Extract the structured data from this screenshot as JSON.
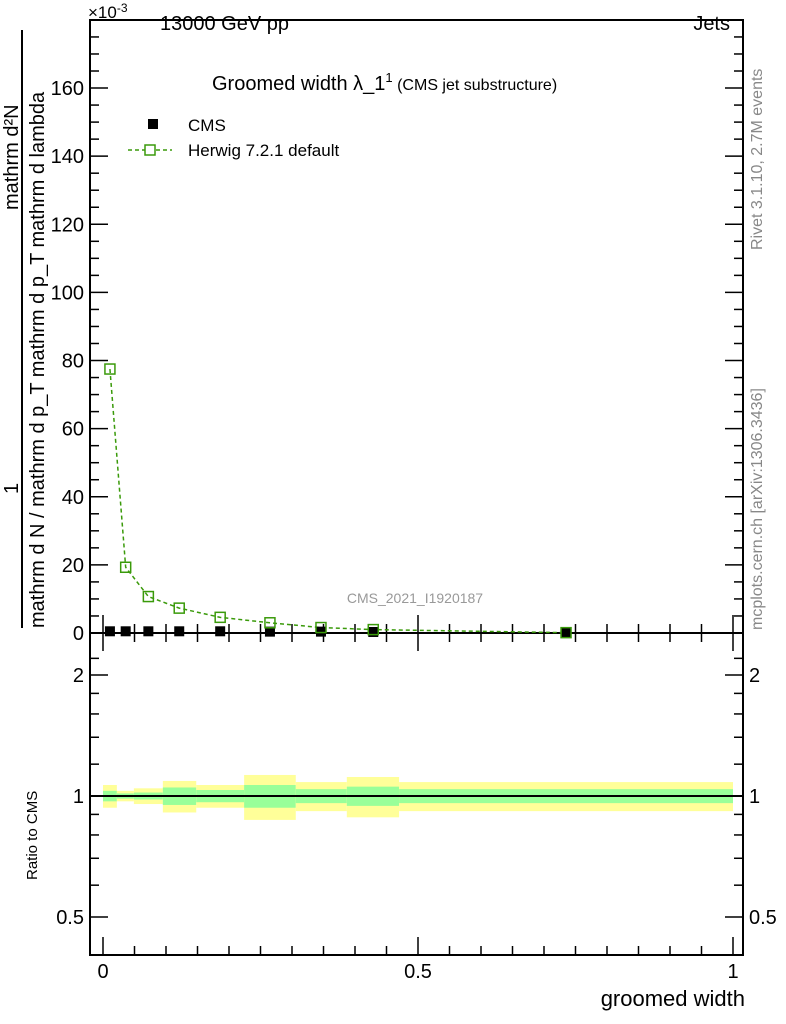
{
  "header": {
    "energy": "13000 GeV pp",
    "category": "Jets",
    "exponent": "×10",
    "exponent_power": "-3"
  },
  "side": {
    "rivet": "Rivet 3.1.10,  2.7M events",
    "mcplots": "mcplots.cern.ch [arXiv:1306.3436]"
  },
  "chart_data": [
    {
      "type": "line",
      "title": "Groomed width λ_1^1",
      "title_main": "Groomed width",
      "title_sym": "λ_1",
      "title_sup": "1",
      "title_suffix": "(CMS jet substructure)",
      "analysis_id": "CMS_2021_I1920187",
      "xlabel": "groomed width",
      "ylabel_num_left": "1",
      "ylabel_den_left": "mathrm d N / mathrm d p_T mathrm d p_T mathrm d lambda",
      "ylabel_num_right": "mathrm d²N",
      "xlim": [
        0,
        1
      ],
      "ylim": [
        0,
        175
      ],
      "xticks": [
        "0",
        "0.5",
        "1"
      ],
      "yticks": [
        "0",
        "20",
        "40",
        "60",
        "80",
        "100",
        "120",
        "140",
        "160"
      ],
      "bin_edges": [
        0,
        0.022,
        0.049,
        0.095,
        0.148,
        0.224,
        0.306,
        0.387,
        0.47,
        1.0
      ],
      "x": [
        0.011,
        0.036,
        0.072,
        0.121,
        0.186,
        0.265,
        0.346,
        0.429,
        0.735
      ],
      "series": [
        {
          "name": "CMS",
          "color": "#000000",
          "values": [
            0.5,
            0.5,
            0.5,
            0.5,
            0.5,
            0.4,
            0.4,
            0.3,
            0.1
          ]
        },
        {
          "name": "Herwig 7.2.1 default",
          "color": "#3a9a0a",
          "values": [
            77.5,
            19.3,
            10.7,
            7.3,
            4.6,
            3.0,
            1.6,
            1.0,
            0.1
          ]
        }
      ],
      "legend_position": "top-left"
    },
    {
      "type": "area",
      "ylabel": "Ratio to CMS",
      "scale": "log",
      "ylim": [
        0.4,
        2.4
      ],
      "yticks": [
        "0.5",
        "1",
        "2"
      ],
      "reference_line": 1,
      "band_total_pct": [
        6.5,
        3,
        4.5,
        9,
        6.5,
        12.8,
        8.3,
        11.5,
        8.3
      ],
      "band_stat_pct": [
        3,
        1.5,
        2,
        5,
        3.5,
        6.5,
        4,
        5.5,
        4
      ],
      "colors": {
        "total": "#ffff99",
        "stat": "#99ff99"
      }
    }
  ]
}
